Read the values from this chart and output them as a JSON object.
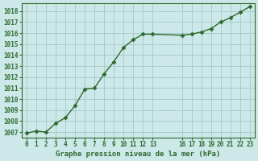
{
  "x": [
    0,
    1,
    2,
    3,
    4,
    5,
    6,
    7,
    8,
    9,
    10,
    11,
    12,
    13,
    16,
    17,
    18,
    19,
    20,
    21,
    22,
    23
  ],
  "y": [
    1006.9,
    1007.1,
    1007.0,
    1007.8,
    1008.3,
    1009.4,
    1010.9,
    1011.0,
    1012.3,
    1013.4,
    1014.7,
    1015.4,
    1015.9,
    1015.9,
    1015.8,
    1015.9,
    1016.1,
    1016.4,
    1017.0,
    1017.4,
    1017.9,
    1018.4
  ],
  "line_color": "#2d6a2d",
  "marker": "D",
  "marker_size": 2.5,
  "bg_color": "#cce8e8",
  "grid_color": "#aacccc",
  "ylabel_ticks": [
    1007,
    1008,
    1009,
    1010,
    1011,
    1012,
    1013,
    1014,
    1015,
    1016,
    1017,
    1018
  ],
  "xlabel_label": "Graphe pression niveau de la mer (hPa)",
  "xticks": [
    0,
    1,
    2,
    3,
    4,
    5,
    6,
    7,
    8,
    9,
    10,
    11,
    12,
    13,
    16,
    17,
    18,
    19,
    20,
    21,
    22,
    23
  ],
  "xlim": [
    -0.5,
    23.5
  ],
  "ylim": [
    1006.5,
    1018.7
  ],
  "tick_label_color": "#2d6a2d",
  "xlabel_color": "#2d6a2d",
  "title_color": "#2d6a2d"
}
